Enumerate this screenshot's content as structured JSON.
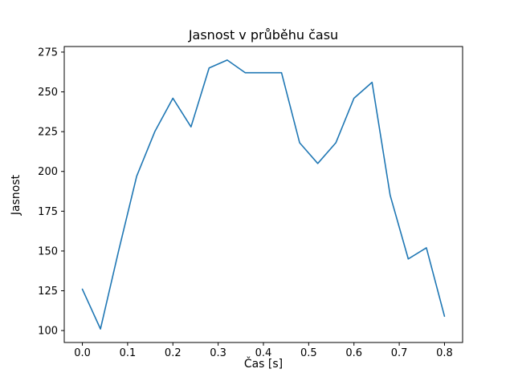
{
  "figure": {
    "background": "#ffffff",
    "axes_edge_color": "#000000",
    "text_color": "#000000"
  },
  "chart_data": {
    "type": "line",
    "title": "Jasnost v průběhu času",
    "xlabel": "Čas [s]",
    "ylabel": "Jasnost",
    "line_color": "#1f77b4",
    "grid": false,
    "legend": null,
    "xlim": [
      -0.04,
      0.84
    ],
    "ylim": [
      92.5,
      278.5
    ],
    "x": [
      0.0,
      0.04,
      0.08,
      0.12,
      0.16,
      0.2,
      0.24,
      0.28,
      0.32,
      0.36,
      0.4,
      0.44,
      0.48,
      0.52,
      0.56,
      0.6,
      0.64,
      0.68,
      0.72,
      0.76,
      0.8
    ],
    "y": [
      126,
      101,
      150,
      197,
      225,
      246,
      228,
      265,
      270,
      262,
      262,
      262,
      218,
      205,
      218,
      246,
      256,
      185,
      145,
      152,
      109
    ],
    "xticks": {
      "values": [
        0.0,
        0.1,
        0.2,
        0.3,
        0.4,
        0.5,
        0.6,
        0.7,
        0.8
      ],
      "labels": [
        "0.0",
        "0.1",
        "0.2",
        "0.3",
        "0.4",
        "0.5",
        "0.6",
        "0.7",
        "0.8"
      ]
    },
    "yticks": {
      "values": [
        100,
        125,
        150,
        175,
        200,
        225,
        250,
        275
      ],
      "labels": [
        "100",
        "125",
        "150",
        "175",
        "200",
        "225",
        "250",
        "275"
      ]
    }
  }
}
